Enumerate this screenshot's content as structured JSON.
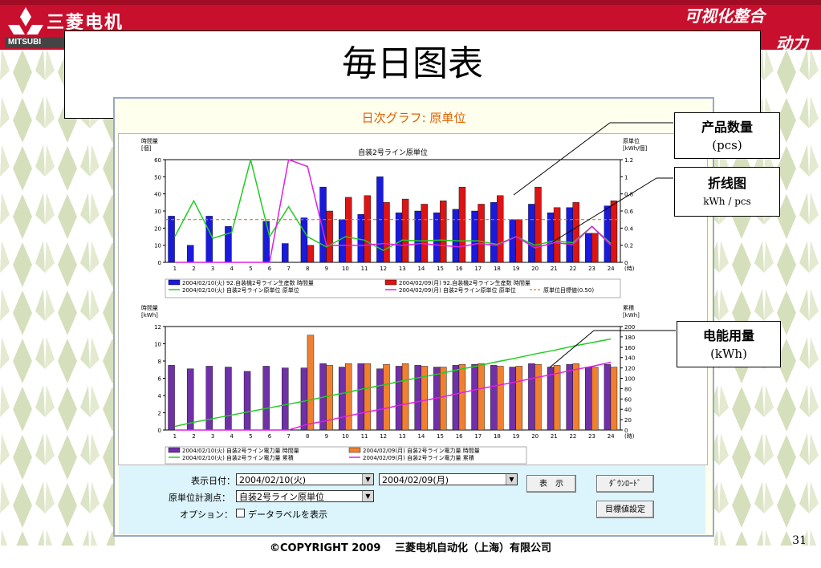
{
  "header": {
    "company_cn": "三菱电机",
    "company_en": "MITSUBI",
    "slogan_line1": "可视化整合",
    "slogan_line2": "动力"
  },
  "slide_title": "毎日图表",
  "app": {
    "title": "日次グラフ: 原单位"
  },
  "chart_top": {
    "title": "自装2号ライン原単位",
    "left_unit_label": "時間量",
    "left_unit": "[個]",
    "right_unit_label": "原単位",
    "right_unit": "[kWh/個]",
    "hour_label": "(時)",
    "legend": [
      "2004/02/10(火) 92.自装機2号ライン生産数 時間量",
      "2004/02/09(月) 92.自装機2号ライン生産数 時間量",
      "2004/02/10(火) 自装2号ライン原単位 原単位",
      "2004/02/09(月) 自装2号ライン原単位 原単位",
      "原単位目標値(0.50)"
    ]
  },
  "chart_bottom": {
    "left_unit_label": "時間量",
    "left_unit": "[kWh]",
    "right_unit_label": "累積",
    "right_unit": "[kWh]",
    "hour_label": "(時)",
    "legend": [
      "2004/02/10(火) 自装2号ライン電力量 時間量",
      "2004/02/09(月) 自装2号ライン電力量 時間量",
      "2004/02/10(火) 自装2号ライン電力量 累積",
      "2004/02/09(月) 自装2号ライン電力量 累積"
    ]
  },
  "controls": {
    "date_label": "表示日付：",
    "date_value": "2004/02/10(火)",
    "compare_value": "2004/02/09(月)",
    "point_label": "原単位計測点：",
    "point_value": "自装2号ライン原単位",
    "option_label": "オプション：",
    "option_checkbox": "データラベルを表示",
    "show_button": "表　示",
    "download_button": "ﾀﾞｳﾝﾛｰﾄﾞ",
    "target_button": "目標値設定"
  },
  "callouts": {
    "quantity_line1": "产品数量",
    "quantity_line2": "(pcs)",
    "line_line1": "折线图",
    "line_line2": "kWh / pcs",
    "power_line1": "电能用量",
    "power_line2": "(kWh)"
  },
  "footer": "©COPYRIGHT 2009　 三菱电机自动化（上海）有限公司",
  "page_number": "31",
  "chart_data": [
    {
      "type": "bar",
      "title": "自装2号ライン原単位",
      "ylabel": "時間量 [個]",
      "y2label": "原単位 [kWh/個]",
      "x": [
        "1",
        "2",
        "3",
        "4",
        "5",
        "6",
        "7",
        "8",
        "9",
        "10",
        "11",
        "12",
        "13",
        "14",
        "15",
        "16",
        "17",
        "18",
        "19",
        "20",
        "21",
        "22",
        "23",
        "24"
      ],
      "ylim": [
        0,
        60
      ],
      "y2lim": [
        0,
        1.2
      ],
      "series": [
        {
          "name": "2004/02/10(火) 92.自装機2号ライン生産数 時間量",
          "kind": "bar",
          "color": "#1a1adc",
          "values": [
            27,
            10,
            27,
            21,
            0,
            24,
            11,
            26,
            44,
            25,
            28,
            50,
            29,
            30,
            29,
            31,
            30,
            35,
            25,
            34,
            29,
            32,
            17,
            33
          ]
        },
        {
          "name": "2004/02/09(月) 92.自装機2号ライン生産数 時間量",
          "kind": "bar",
          "color": "#dc1414",
          "values": [
            0,
            0,
            0,
            0,
            0,
            0,
            0,
            10,
            30,
            38,
            39,
            35,
            37,
            34,
            36,
            44,
            34,
            39,
            25,
            44,
            32,
            35,
            17,
            36
          ]
        },
        {
          "name": "2004/02/10(火) 自装2号ライン原単位 原単位",
          "kind": "line",
          "axis": "right",
          "color": "#22cc22",
          "values": [
            0.3,
            0.72,
            0.28,
            0.35,
            1.2,
            0.3,
            0.65,
            0.3,
            0.18,
            0.3,
            0.26,
            0.14,
            0.26,
            0.25,
            0.26,
            0.25,
            0.25,
            0.21,
            0.3,
            0.2,
            0.25,
            0.23,
            0.42,
            0.22
          ]
        },
        {
          "name": "2004/02/09(月) 自装2号ライン原単位 原単位",
          "kind": "line",
          "axis": "right",
          "color": "#e020e0",
          "values": [
            0,
            0,
            0,
            0,
            0,
            0,
            1.2,
            1.12,
            0.2,
            0.2,
            0.2,
            0.22,
            0.2,
            0.22,
            0.2,
            0.18,
            0.22,
            0.2,
            0.3,
            0.17,
            0.23,
            0.21,
            0.42,
            0.2
          ]
        },
        {
          "name": "原単位目標値(0.50)",
          "kind": "dashed",
          "axis": "right",
          "color": "#f07020",
          "value": 0.5
        }
      ]
    },
    {
      "type": "bar",
      "ylabel": "時間量 [kWh]",
      "y2label": "累積 [kWh]",
      "x": [
        "1",
        "2",
        "3",
        "4",
        "5",
        "6",
        "7",
        "8",
        "9",
        "10",
        "11",
        "12",
        "13",
        "14",
        "15",
        "16",
        "17",
        "18",
        "19",
        "20",
        "21",
        "22",
        "23",
        "24"
      ],
      "ylim": [
        0,
        12
      ],
      "y2lim": [
        0,
        200
      ],
      "series": [
        {
          "name": "2004/02/10(火) 自装2号ライン電力量 時間量",
          "kind": "bar",
          "color": "#7030a8",
          "values": [
            7.5,
            7.1,
            7.4,
            7.3,
            6.8,
            7.4,
            7.2,
            7.2,
            7.7,
            7.3,
            7.7,
            7.1,
            7.4,
            7.5,
            7.3,
            7.5,
            7.6,
            7.5,
            7.3,
            7.7,
            7.3,
            7.6,
            7.3,
            7.6
          ]
        },
        {
          "name": "2004/02/09(月) 自装2号ライン電力量 時間量",
          "kind": "bar",
          "color": "#f08030",
          "values": [
            0,
            0,
            0,
            0,
            0,
            0,
            0,
            11,
            7.5,
            7.7,
            7.7,
            7.6,
            7.7,
            7.4,
            7.3,
            7.6,
            7.7,
            7.4,
            7.4,
            7.6,
            7.5,
            7.7,
            7.3,
            7.3
          ]
        },
        {
          "name": "2004/02/10(火) 自装2号ライン電力量 累積",
          "kind": "line",
          "axis": "right",
          "color": "#22cc22",
          "values": [
            7,
            15,
            22,
            29,
            36,
            43,
            50,
            57,
            65,
            72,
            80,
            87,
            95,
            102,
            109,
            117,
            124,
            132,
            139,
            147,
            154,
            162,
            169,
            176
          ]
        },
        {
          "name": "2004/02/09(月) 自装2号ライン電力量 累積",
          "kind": "line",
          "axis": "right",
          "color": "#e020e0",
          "values": [
            0,
            0,
            0,
            0,
            0,
            0,
            0,
            11,
            18,
            26,
            34,
            41,
            49,
            56,
            63,
            71,
            79,
            86,
            93,
            101,
            108,
            116,
            123,
            131
          ]
        }
      ]
    }
  ]
}
